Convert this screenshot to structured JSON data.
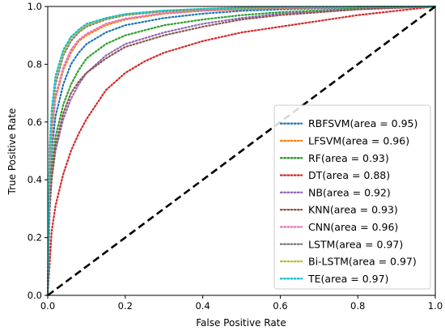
{
  "chart_data": {
    "type": "line",
    "xlabel": "False Positive Rate",
    "ylabel": "True Positive Rate",
    "xlim": [
      0.0,
      1.0
    ],
    "ylim": [
      0.0,
      1.0
    ],
    "xticks": [
      "0.0",
      "0.2",
      "0.4",
      "0.6",
      "0.8",
      "1.0"
    ],
    "yticks": [
      "0.0",
      "0.2",
      "0.4",
      "0.6",
      "0.8",
      "1.0"
    ],
    "grid": false,
    "legend_position": "lower-right",
    "diagonal": {
      "x": [
        0.0,
        1.0
      ],
      "y": [
        0.0,
        1.0
      ],
      "color": "#000000",
      "style": "dashed"
    },
    "series": [
      {
        "name": "RBFSVM(area = 0.95)",
        "color": "#1f77b4",
        "x": [
          0,
          0.005,
          0.01,
          0.02,
          0.04,
          0.06,
          0.08,
          0.1,
          0.15,
          0.2,
          0.3,
          0.4,
          0.5,
          0.6,
          0.8,
          1.0
        ],
        "y": [
          0,
          0.38,
          0.5,
          0.62,
          0.73,
          0.8,
          0.84,
          0.87,
          0.91,
          0.935,
          0.96,
          0.975,
          0.985,
          0.99,
          0.997,
          1.0
        ]
      },
      {
        "name": "LFSVM(area = 0.96)",
        "color": "#ff7f0e",
        "x": [
          0,
          0.005,
          0.01,
          0.02,
          0.04,
          0.06,
          0.08,
          0.1,
          0.15,
          0.2,
          0.3,
          0.4,
          0.5,
          0.6,
          0.8,
          1.0
        ],
        "y": [
          0,
          0.42,
          0.55,
          0.68,
          0.78,
          0.84,
          0.88,
          0.9,
          0.935,
          0.955,
          0.975,
          0.985,
          0.99,
          0.994,
          0.998,
          1.0
        ]
      },
      {
        "name": "RF(area = 0.93)",
        "color": "#2ca02c",
        "x": [
          0,
          0.005,
          0.01,
          0.02,
          0.04,
          0.06,
          0.08,
          0.1,
          0.15,
          0.2,
          0.3,
          0.4,
          0.5,
          0.6,
          0.8,
          1.0
        ],
        "y": [
          0,
          0.33,
          0.44,
          0.55,
          0.66,
          0.73,
          0.78,
          0.82,
          0.87,
          0.9,
          0.935,
          0.955,
          0.97,
          0.98,
          0.993,
          1.0
        ]
      },
      {
        "name": "DT(area = 0.88)",
        "color": "#d62728",
        "x": [
          0,
          0.01,
          0.02,
          0.04,
          0.06,
          0.08,
          0.1,
          0.15,
          0.2,
          0.25,
          0.3,
          0.4,
          0.5,
          0.6,
          0.8,
          1.0
        ],
        "y": [
          0,
          0.22,
          0.31,
          0.42,
          0.5,
          0.56,
          0.61,
          0.71,
          0.77,
          0.81,
          0.84,
          0.88,
          0.91,
          0.93,
          0.97,
          1.0
        ]
      },
      {
        "name": "NB(area = 0.92)",
        "color": "#9467bd",
        "x": [
          0,
          0.005,
          0.01,
          0.02,
          0.04,
          0.06,
          0.08,
          0.1,
          0.15,
          0.2,
          0.3,
          0.4,
          0.5,
          0.6,
          0.8,
          1.0
        ],
        "y": [
          0,
          0.3,
          0.4,
          0.5,
          0.61,
          0.68,
          0.73,
          0.77,
          0.83,
          0.87,
          0.91,
          0.94,
          0.96,
          0.975,
          0.99,
          1.0
        ]
      },
      {
        "name": "KNN(area = 0.93)",
        "color": "#8c564b",
        "x": [
          0,
          0.005,
          0.01,
          0.02,
          0.04,
          0.06,
          0.08,
          0.1,
          0.15,
          0.2,
          0.3,
          0.4,
          0.5,
          0.6,
          0.8,
          1.0
        ],
        "y": [
          0,
          0.3,
          0.4,
          0.52,
          0.63,
          0.7,
          0.74,
          0.77,
          0.82,
          0.86,
          0.9,
          0.93,
          0.955,
          0.97,
          0.99,
          1.0
        ]
      },
      {
        "name": "CNN(area = 0.96)",
        "color": "#e377c2",
        "x": [
          0,
          0.005,
          0.01,
          0.02,
          0.04,
          0.06,
          0.08,
          0.1,
          0.15,
          0.2,
          0.3,
          0.4,
          0.5,
          0.6,
          0.8,
          1.0
        ],
        "y": [
          0,
          0.43,
          0.56,
          0.69,
          0.79,
          0.85,
          0.885,
          0.905,
          0.94,
          0.958,
          0.977,
          0.986,
          0.991,
          0.995,
          0.998,
          1.0
        ]
      },
      {
        "name": "LSTM(area = 0.97)",
        "color": "#7f7f7f",
        "x": [
          0,
          0.005,
          0.01,
          0.02,
          0.04,
          0.06,
          0.08,
          0.1,
          0.15,
          0.2,
          0.3,
          0.4,
          0.5,
          0.6,
          0.8,
          1.0
        ],
        "y": [
          0,
          0.48,
          0.6,
          0.73,
          0.83,
          0.88,
          0.91,
          0.93,
          0.955,
          0.97,
          0.983,
          0.99,
          0.994,
          0.996,
          0.999,
          1.0
        ]
      },
      {
        "name": "Bi-LSTM(area = 0.97)",
        "color": "#bcbd22",
        "x": [
          0,
          0.005,
          0.01,
          0.02,
          0.04,
          0.06,
          0.08,
          0.1,
          0.15,
          0.2,
          0.3,
          0.4,
          0.5,
          0.6,
          0.8,
          1.0
        ],
        "y": [
          0,
          0.5,
          0.62,
          0.75,
          0.84,
          0.89,
          0.915,
          0.935,
          0.958,
          0.972,
          0.985,
          0.991,
          0.995,
          0.997,
          0.999,
          1.0
        ]
      },
      {
        "name": "TE(area = 0.97)",
        "color": "#17becf",
        "x": [
          0,
          0.005,
          0.01,
          0.02,
          0.04,
          0.06,
          0.08,
          0.1,
          0.15,
          0.2,
          0.3,
          0.4,
          0.5,
          0.6,
          0.8,
          1.0
        ],
        "y": [
          0,
          0.52,
          0.64,
          0.76,
          0.85,
          0.895,
          0.92,
          0.94,
          0.96,
          0.974,
          0.986,
          0.992,
          0.996,
          0.998,
          0.999,
          1.0
        ]
      }
    ]
  }
}
